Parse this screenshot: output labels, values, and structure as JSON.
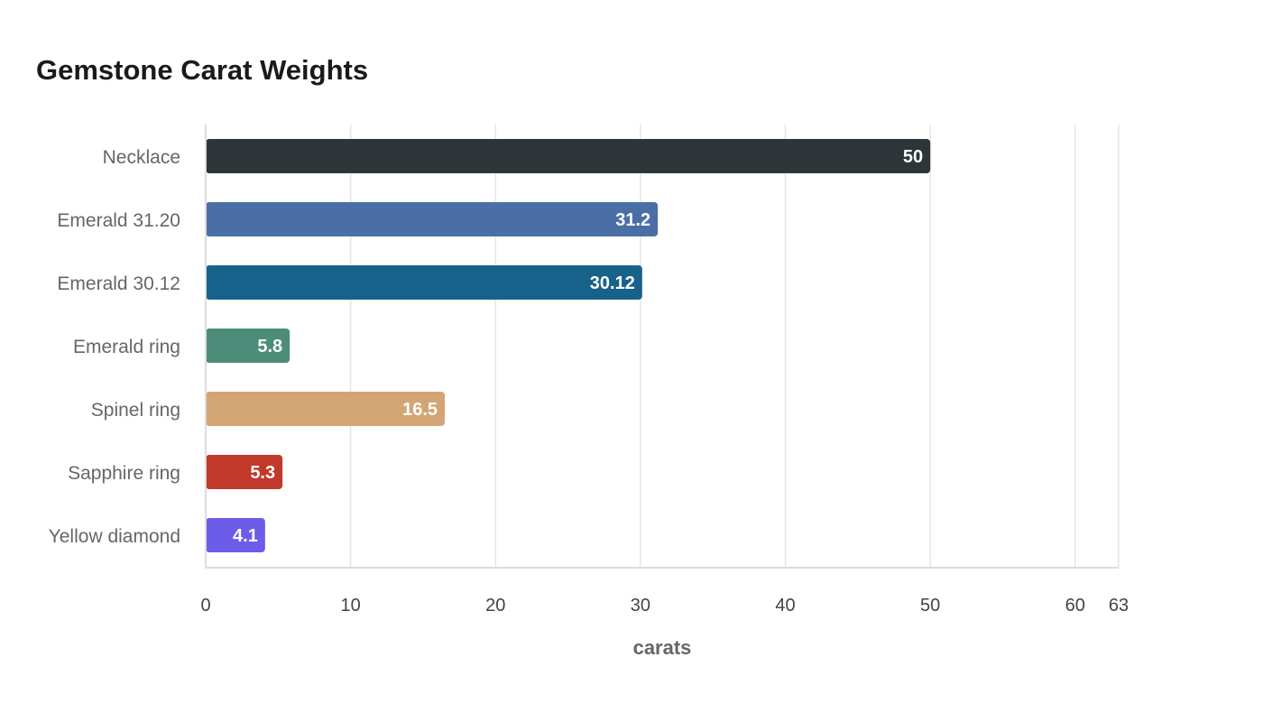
{
  "chart_data": {
    "type": "bar",
    "orientation": "horizontal",
    "title": "Gemstone Carat Weights",
    "xlabel": "carats",
    "ylabel": "",
    "categories": [
      "Necklace",
      "Emerald 31.20",
      "Emerald 30.12",
      "Emerald ring",
      "Spinel ring",
      "Sapphire ring",
      "Yellow diamond"
    ],
    "values": [
      50,
      31.2,
      30.12,
      5.8,
      16.5,
      5.3,
      4.1
    ],
    "colors": [
      "#2e3538",
      "#4a6fa5",
      "#17628a",
      "#4e8c7a",
      "#d4a574",
      "#c0392b",
      "#6c5ce7"
    ],
    "xlim": [
      0,
      63
    ],
    "xticks": [
      0,
      10,
      20,
      30,
      40,
      50,
      60,
      63
    ],
    "grid": true,
    "legend": "none"
  }
}
